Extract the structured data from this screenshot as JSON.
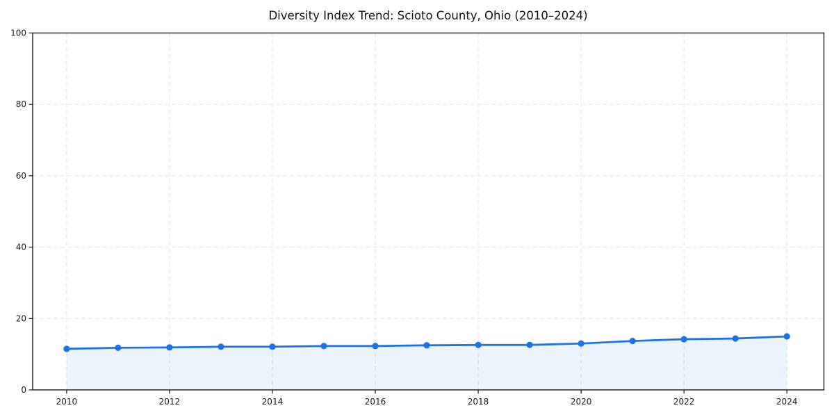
{
  "chart_data": {
    "type": "line",
    "title": "Diversity Index Trend: Scioto County, Ohio (2010–2024)",
    "x": [
      2010,
      2011,
      2012,
      2013,
      2014,
      2015,
      2016,
      2017,
      2018,
      2019,
      2020,
      2021,
      2022,
      2023,
      2024
    ],
    "series": [
      {
        "name": "Diversity Index",
        "values": [
          11.5,
          11.8,
          11.9,
          12.1,
          12.1,
          12.3,
          12.3,
          12.5,
          12.6,
          12.6,
          13.0,
          13.7,
          14.2,
          14.4,
          15.0
        ]
      }
    ],
    "xlabel": "",
    "ylabel": "",
    "xticks": [
      2010,
      2012,
      2014,
      2016,
      2018,
      2020,
      2022,
      2024
    ],
    "yticks": [
      0,
      20,
      40,
      60,
      80,
      100
    ],
    "xlim": [
      2009.34,
      2024.72
    ],
    "ylim": [
      0,
      100
    ],
    "grid": true,
    "grid_style": "dashed",
    "legend": false,
    "marker": "circle",
    "area_fill_to_zero": true,
    "colors": {
      "line": "#1a73e8",
      "marker": "#1a73e8",
      "fill": "#1a73e8",
      "fill_opacity": 0.085,
      "grid": "#e2e2e2",
      "spine": "#1a1a1a",
      "tick_label": "#1a1a1a",
      "title": "#111111",
      "background": "#ffffff"
    }
  }
}
